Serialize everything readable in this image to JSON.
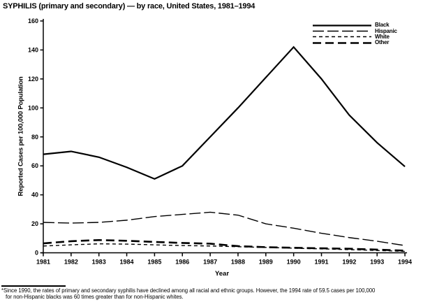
{
  "title": "SYPHILIS (primary and secondary) — by race, United States, 1981–1994",
  "footnote": {
    "line1": "*Since 1990, the rates of primary and secondary syphilis have declined among all racial and ethnic groups. However, the 1994 rate of 59.5 cases per 100,000",
    "line2": "for non-Hispanic blacks was 60 times greater than for non-Hispanic whites."
  },
  "chart_data": {
    "type": "line",
    "title": "SYPHILIS (primary and secondary) — by race, United States, 1981–1994",
    "xlabel": "Year",
    "ylabel": "Reported Cases per 100,000 Population",
    "x": [
      1981,
      1982,
      1983,
      1984,
      1985,
      1986,
      1987,
      1988,
      1989,
      1990,
      1991,
      1992,
      1993,
      1994
    ],
    "ylim": [
      0,
      160
    ],
    "yticks": [
      0,
      20,
      40,
      60,
      80,
      100,
      120,
      140,
      160
    ],
    "grid": false,
    "legend_position": "top-right",
    "color": "#000000",
    "series": [
      {
        "name": "Black",
        "style": "solid",
        "values": [
          68,
          70,
          66,
          59,
          51,
          60,
          80,
          100,
          121,
          142,
          120,
          95,
          76,
          59.5
        ]
      },
      {
        "name": "Hispanic",
        "style": "long-dash",
        "values": [
          21,
          20.5,
          21,
          22.5,
          25,
          26.5,
          28,
          26,
          20,
          17,
          13.5,
          10.5,
          8,
          5
        ]
      },
      {
        "name": "White",
        "style": "short-dash",
        "values": [
          4.7,
          5.5,
          6.2,
          6,
          5.5,
          5,
          4.7,
          4.2,
          3.7,
          3.2,
          2.7,
          2.2,
          1.6,
          1
        ]
      },
      {
        "name": "Other",
        "style": "dash",
        "values": [
          6.5,
          8,
          8.8,
          8.3,
          7.5,
          6.8,
          6.3,
          4.6,
          3.9,
          3.5,
          3.1,
          2.8,
          2.2,
          1.5
        ]
      }
    ]
  }
}
